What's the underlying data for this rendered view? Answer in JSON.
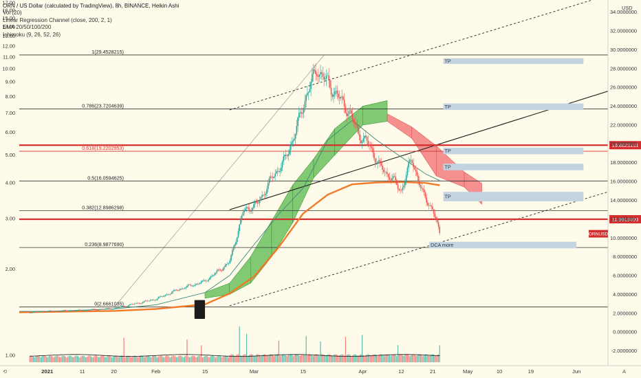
{
  "header": {
    "symbol": "ORN / US Dollar (calculated by TradingView), 8h, BINANCE, Heikin Ashi",
    "indicators": [
      "Vol (20)",
      "Linear Regression Channel (close, 200, 2, 1)",
      "EMA 20/50/100/200",
      "Ichimoku (9, 26, 52, 26)"
    ]
  },
  "colors": {
    "background": "#fffbea",
    "up": "#26a69a",
    "down": "#ef5350",
    "ema200": "#f07a28",
    "ema_teal": "#3a8a7a",
    "cloud_bull": "#6cbf5f",
    "cloud_bear": "#f27e7e",
    "key_level": "#d32f2f",
    "tp_box": "#c4d3e0"
  },
  "chart_data": {
    "type": "candlestick",
    "title": "ORN / US Dollar (calculated by TradingView), 8h, BINANCE, Heikin Ashi",
    "right_axis": {
      "label": "USD",
      "ticks": [
        "34.0000000",
        "32.0000000",
        "30.0000000",
        "28.0000000",
        "26.0000000",
        "24.0000000",
        "22.0000000",
        "20.0000000",
        "18.0000000",
        "16.0000000",
        "14.0000000",
        "12.0000000",
        "10.0000000",
        "8.0000000",
        "6.0000000",
        "4.0000000",
        "2.0000000",
        "0.0000000",
        "-2.0000000"
      ],
      "values": [
        34,
        32,
        30,
        28,
        26,
        24,
        22,
        20,
        18,
        16,
        14,
        12,
        10,
        8,
        6,
        4,
        2,
        0,
        -2
      ],
      "range": [
        -3.2,
        35.0
      ]
    },
    "left_axis": {
      "ticks": [
        "17.00",
        "16.00",
        "15.00",
        "14.00",
        "13.00",
        "12.00",
        "11.00",
        "10.00",
        "9.00",
        "8.00",
        "7.00",
        "6.00",
        "5.00",
        "4.00",
        "3.00",
        "2.00",
        "1.00"
      ],
      "values": [
        17,
        16,
        15,
        14,
        13,
        12,
        11,
        10,
        9,
        8,
        7,
        6,
        5,
        4,
        3,
        2,
        1
      ]
    },
    "x_axis": {
      "labels": [
        "2021",
        "11",
        "20",
        "Feb",
        "15",
        "Mar",
        "15",
        "Apr",
        "12",
        "21",
        "May",
        "10",
        "19",
        "Jun"
      ],
      "day_index": [
        0,
        10,
        19,
        31,
        45,
        59,
        73,
        90,
        101,
        110,
        120,
        129,
        138,
        151
      ],
      "range_days": [
        -8,
        160
      ]
    },
    "fib_levels": [
      {
        "label": "1(29.4528215)",
        "value": 29.4528215
      },
      {
        "label": "0.786(23.7204639)",
        "value": 23.7204639
      },
      {
        "label": "0.618(19.2202953)",
        "value": 19.2202953
      },
      {
        "label": "0.5(16.0594625)",
        "value": 16.0594625
      },
      {
        "label": "0.382(12.8986298)",
        "value": 12.8986298
      },
      {
        "label": "0.236(8.9877690)",
        "value": 8.987769
      },
      {
        "label": "0(2.6661035)",
        "value": 2.6661035
      }
    ],
    "key_levels": [
      {
        "label": "19.8625151",
        "value": 19.8625151
      },
      {
        "label": "11.9918498",
        "value": 11.9918498
      }
    ],
    "current_price_label": "ORNUSD",
    "current_price": 10.45,
    "targets": [
      {
        "label": "TP",
        "low": 28.5,
        "high": 29.1,
        "from_day": 113,
        "to_day": 153
      },
      {
        "label": "TP",
        "low": 23.6,
        "high": 24.3,
        "from_day": 113,
        "to_day": 153
      },
      {
        "label": "TP",
        "low": 18.9,
        "high": 19.6,
        "from_day": 113,
        "to_day": 153
      },
      {
        "label": "TP",
        "low": 17.2,
        "high": 17.9,
        "from_day": 113,
        "to_day": 153
      },
      {
        "label": "TP",
        "low": 13.9,
        "high": 14.9,
        "from_day": 113,
        "to_day": 153
      },
      {
        "label": "DCA more",
        "low": 8.9,
        "high": 9.6,
        "from_day": 109,
        "to_day": 151
      }
    ],
    "price_path": {
      "day": [
        -5,
        0,
        10,
        19,
        25,
        31,
        38,
        45,
        52,
        56,
        60,
        64,
        68,
        71,
        74,
        77,
        80,
        83,
        86,
        89,
        92,
        95,
        98,
        101,
        104,
        107,
        110,
        112
      ],
      "close": [
        2.1,
        2.2,
        2.3,
        2.5,
        3.0,
        3.5,
        4.6,
        5.4,
        7.4,
        12.9,
        13.6,
        16.3,
        18.4,
        21.5,
        25.3,
        28.0,
        26.5,
        25.0,
        23.5,
        21.0,
        19.8,
        17.5,
        16.5,
        15.0,
        18.5,
        14.8,
        13.0,
        10.45
      ]
    },
    "ema200": {
      "day": [
        -8,
        0,
        19,
        31,
        45,
        52,
        59,
        66,
        73,
        80,
        87,
        94,
        101,
        108,
        112
      ],
      "value": [
        2.1,
        2.15,
        2.25,
        2.45,
        2.95,
        4.1,
        5.9,
        9.0,
        12.6,
        14.6,
        15.7,
        15.9,
        15.95,
        15.85,
        15.6
      ]
    },
    "ema_fast": {
      "day": [
        -8,
        0,
        19,
        31,
        45,
        52,
        59,
        66,
        73,
        80,
        87,
        94,
        101,
        108,
        112
      ],
      "value": [
        2.2,
        2.2,
        2.45,
        2.9,
        4.2,
        6.0,
        9.3,
        12.5,
        15.3,
        20.4,
        22.5,
        20.4,
        18.6,
        16.8,
        16.1
      ]
    },
    "cloud": [
      {
        "from": 45,
        "to": 52,
        "a": [
          4.2,
          5.2
        ],
        "b": [
          3.6,
          4.0
        ],
        "color": "bull"
      },
      {
        "from": 52,
        "to": 58,
        "a": [
          5.2,
          8.0
        ],
        "b": [
          4.0,
          5.2
        ],
        "color": "bull"
      },
      {
        "from": 58,
        "to": 64,
        "a": [
          8.0,
          11.8
        ],
        "b": [
          5.2,
          8.0
        ],
        "color": "bull"
      },
      {
        "from": 64,
        "to": 70,
        "a": [
          11.8,
          15.6
        ],
        "b": [
          8.0,
          11.6
        ],
        "color": "bull"
      },
      {
        "from": 70,
        "to": 76,
        "a": [
          15.6,
          18.4
        ],
        "b": [
          11.6,
          16.4
        ],
        "color": "bull"
      },
      {
        "from": 76,
        "to": 82,
        "a": [
          18.4,
          21.6
        ],
        "b": [
          16.4,
          18.8
        ],
        "color": "bull"
      },
      {
        "from": 82,
        "to": 90,
        "a": [
          21.6,
          24.0
        ],
        "b": [
          18.8,
          22.0
        ],
        "color": "bull"
      },
      {
        "from": 90,
        "to": 97,
        "a": [
          24.0,
          24.6
        ],
        "b": [
          22.0,
          22.4
        ],
        "color": "bull"
      },
      {
        "from": 97,
        "to": 104,
        "a": [
          23.2,
          21.8
        ],
        "b": [
          22.4,
          20.6
        ],
        "color": "bear"
      },
      {
        "from": 104,
        "to": 111,
        "a": [
          21.8,
          19.8
        ],
        "b": [
          20.6,
          16.6
        ],
        "color": "bear"
      },
      {
        "from": 111,
        "to": 119,
        "a": [
          19.8,
          17.0
        ],
        "b": [
          16.6,
          15.4
        ],
        "color": "bear"
      },
      {
        "from": 119,
        "to": 124,
        "a": [
          17.0,
          15.8
        ],
        "b": [
          15.4,
          13.6
        ],
        "color": "bear"
      }
    ],
    "regression_channel": {
      "from_day": 52,
      "to_day": 160,
      "mid": [
        13.0,
        25.6
      ],
      "upper": [
        23.6,
        35.8
      ],
      "lower": [
        2.8,
        14.9
      ]
    },
    "thin_trend": {
      "from_day": 19,
      "to_day": 79,
      "values": [
        2.6,
        29.45
      ]
    },
    "marker_box": {
      "from_day": 42,
      "to_day": 45,
      "low": 1.4,
      "high": 3.4
    },
    "volume": {
      "axis": [
        -3.2,
        3.0
      ],
      "baseline": -2.9,
      "spikes": [
        {
          "day": 22,
          "value": -0.6
        },
        {
          "day": 40,
          "value": -0.8
        },
        {
          "day": 44,
          "value": -1.4
        },
        {
          "day": 55,
          "value": 0.6
        },
        {
          "day": 57,
          "value": -0.2
        },
        {
          "day": 66,
          "value": -0.9
        },
        {
          "day": 74,
          "value": -0.4
        },
        {
          "day": 78,
          "value": -1.0
        },
        {
          "day": 85,
          "value": -0.5
        },
        {
          "day": 90,
          "value": -0.3
        },
        {
          "day": 100,
          "value": -1.4
        },
        {
          "day": 112,
          "value": -1.4
        }
      ]
    },
    "grid": false
  }
}
